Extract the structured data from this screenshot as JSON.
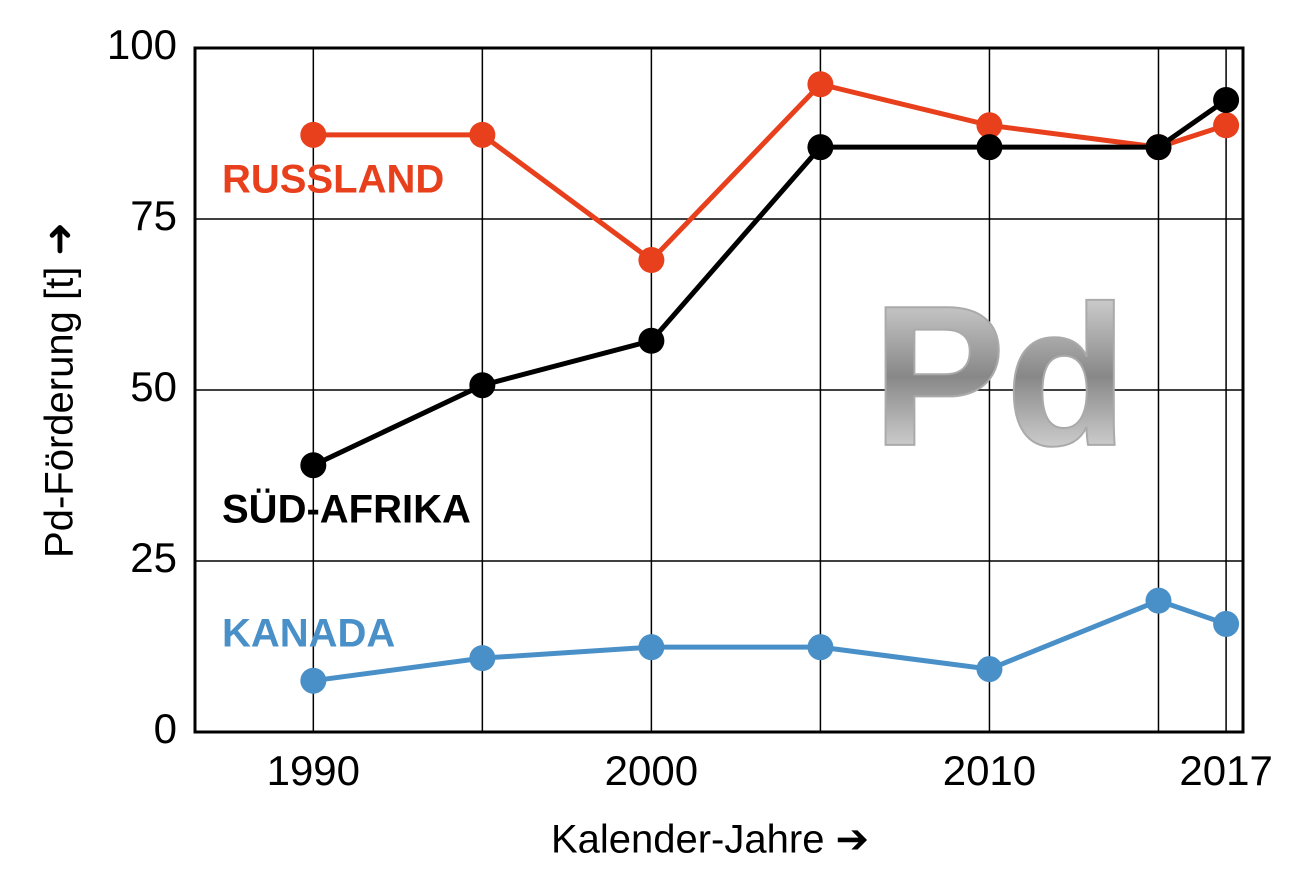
{
  "chart_data": {
    "type": "line",
    "xlabel": "Kalender-Jahre ➔",
    "ylabel": "Pd-Förderung [t] ➜",
    "watermark": "Pd",
    "x": [
      1990,
      1995,
      2000,
      2005,
      2010,
      2015,
      2017
    ],
    "xlim": [
      1986.5,
      2017.5
    ],
    "xticks": [
      1990,
      2000,
      2010,
      2017
    ],
    "x_gridlines": [
      1990,
      1995,
      2000,
      2005,
      2010,
      2015,
      2017
    ],
    "ylim": [
      0,
      100
    ],
    "yticks": [
      0,
      25,
      50,
      75,
      100
    ],
    "grid": true,
    "series": [
      {
        "name": "RUSSLAND",
        "color": "#e8401c",
        "values": [
          87.3,
          87.3,
          69,
          94.7,
          88.7,
          85.5,
          88.7
        ]
      },
      {
        "name": "SÜD-AFRIKA",
        "color": "#000000",
        "values": [
          39,
          50.7,
          57.2,
          85.5,
          85.5,
          85.5,
          92.4
        ]
      },
      {
        "name": "KANADA",
        "color": "#4a90c8",
        "values": [
          7.5,
          10.8,
          12.4,
          12.4,
          9.2,
          19.2,
          15.8
        ]
      }
    ]
  }
}
